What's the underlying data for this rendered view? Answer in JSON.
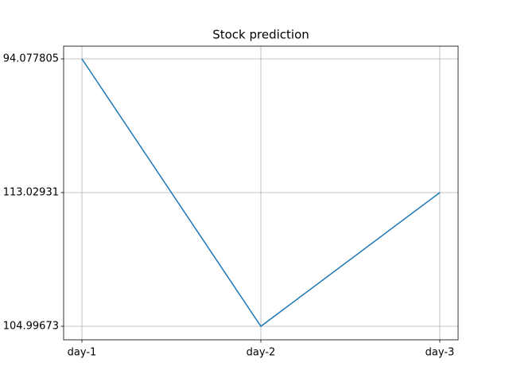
{
  "chart_data": {
    "type": "line",
    "title": "Stock prediction",
    "categories": [
      "day-1",
      "day-2",
      "day-3"
    ],
    "y_categories": [
      "104.99673",
      "113.02931",
      "94.077805"
    ],
    "values": [
      "94.077805",
      "104.99673",
      "113.02931"
    ],
    "color": "#1f77b4",
    "grid": true
  }
}
